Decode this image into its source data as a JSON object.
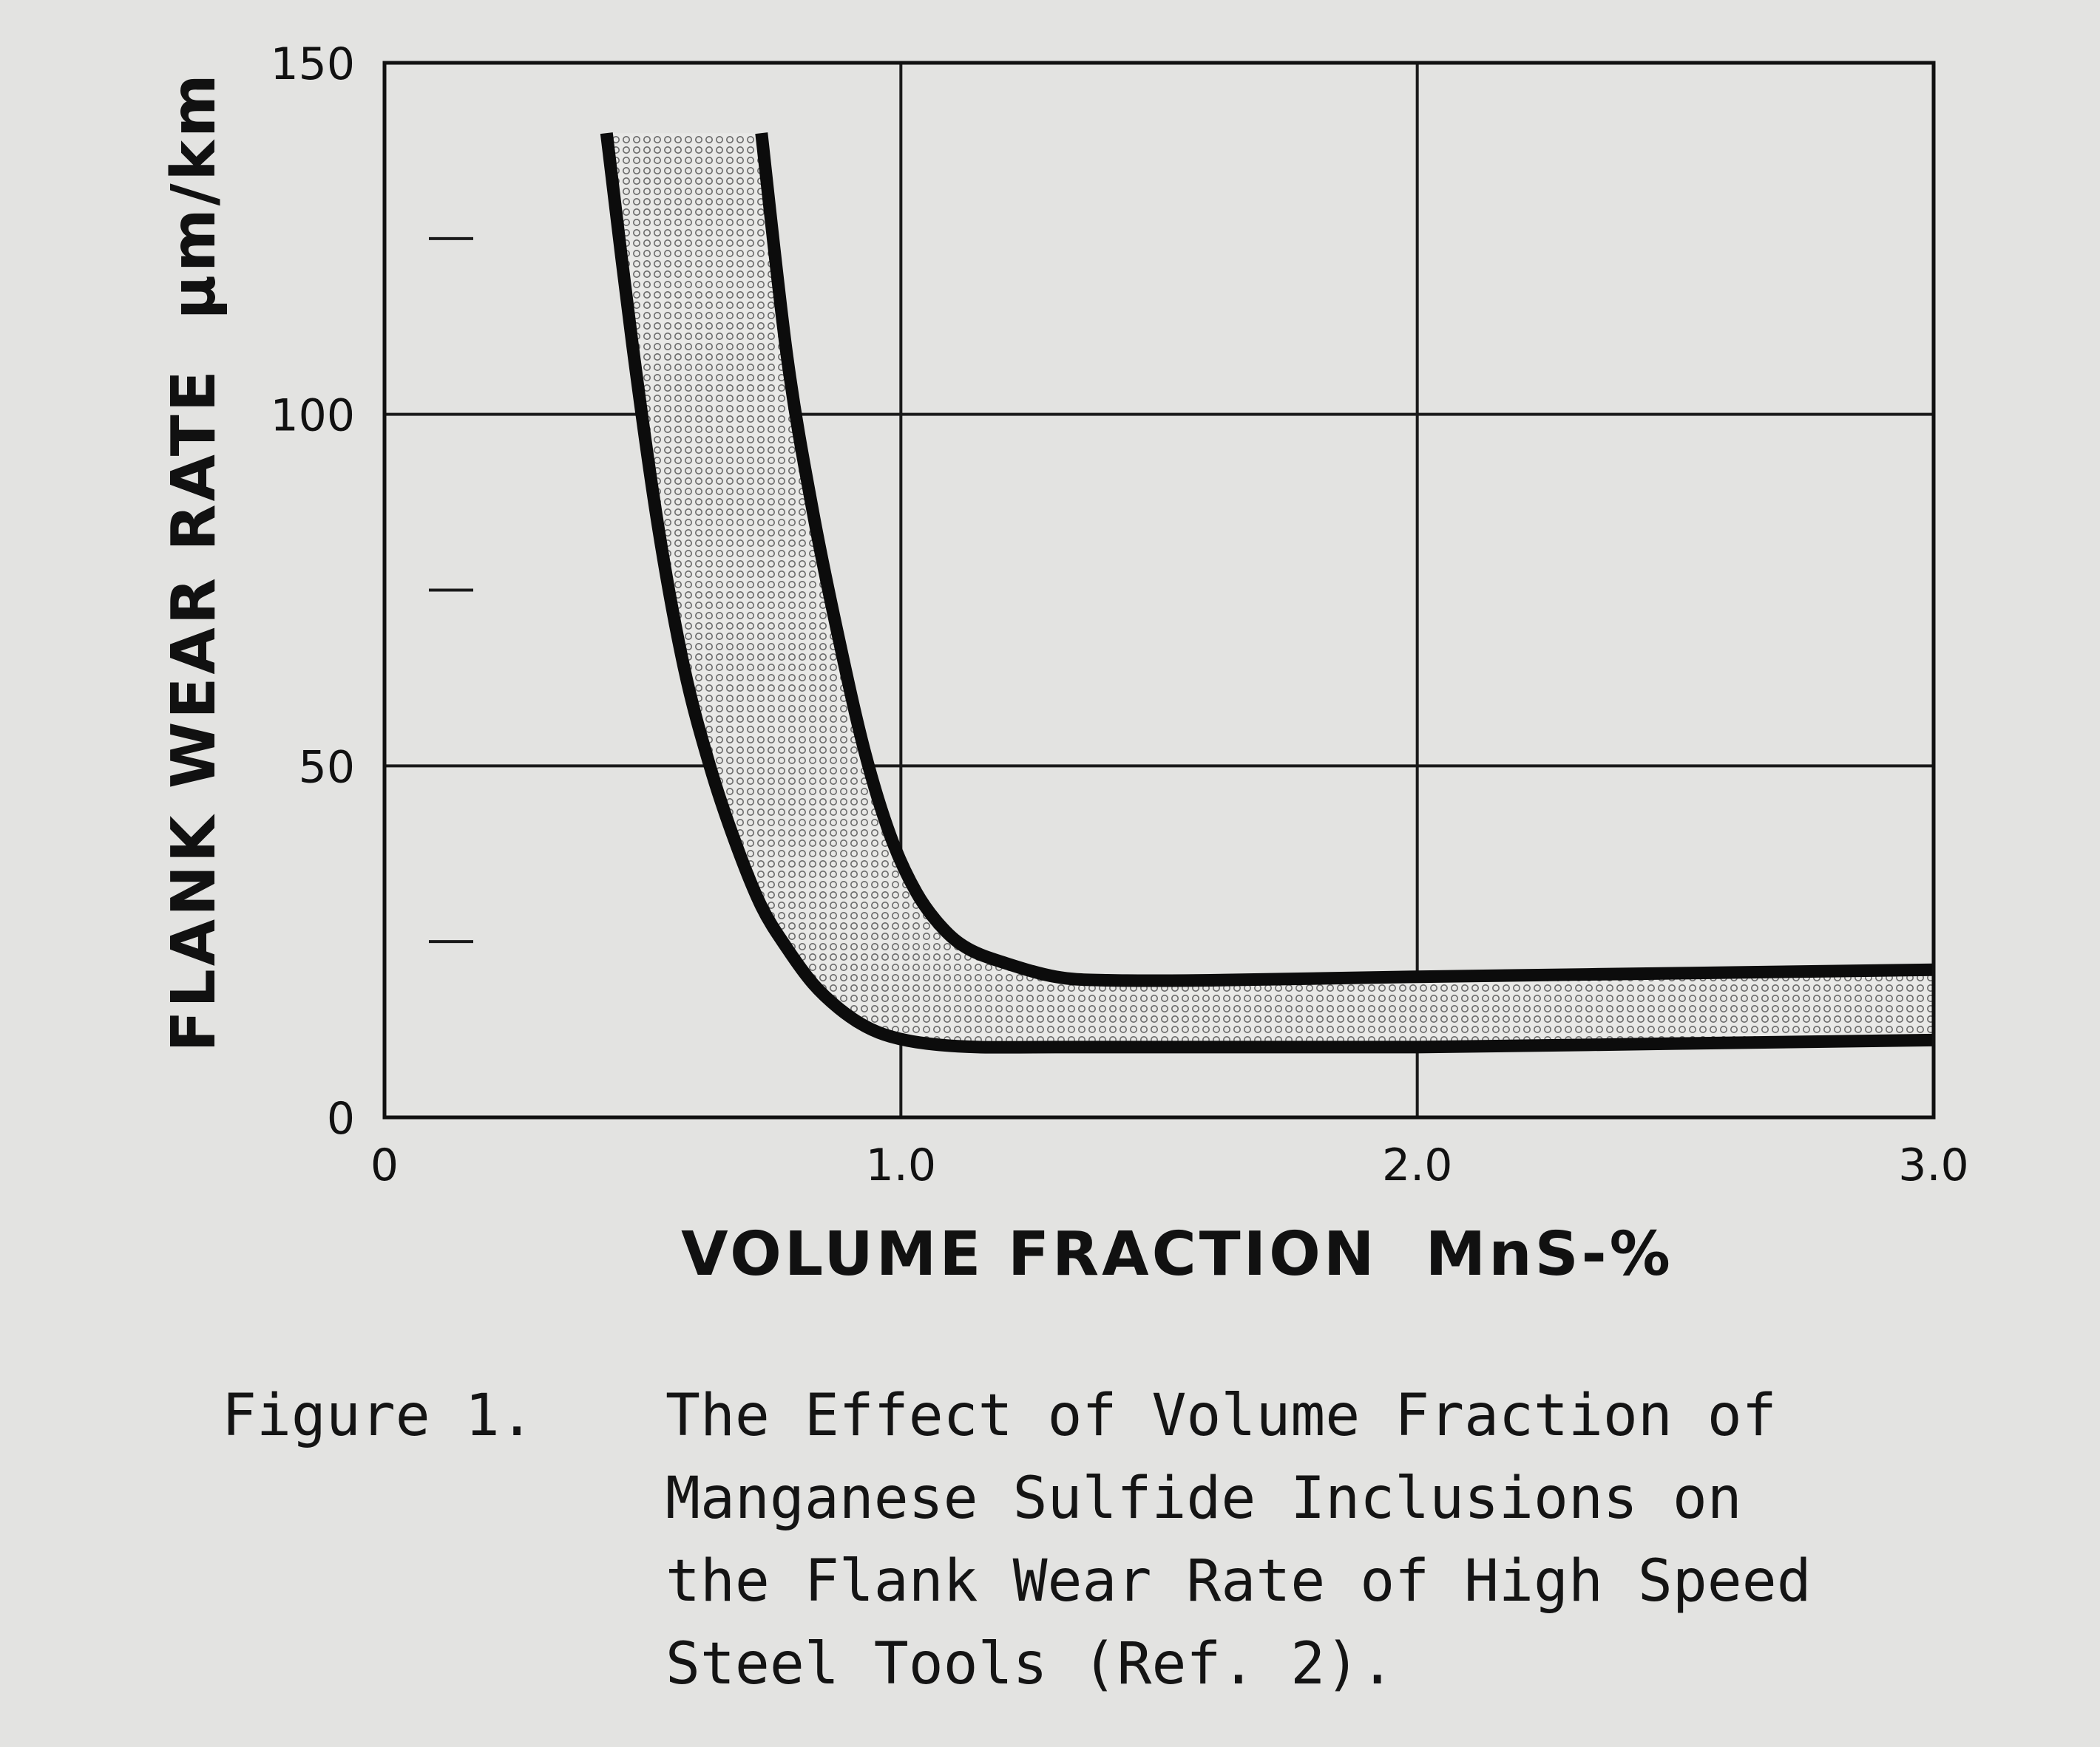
{
  "chart_data": {
    "type": "area",
    "xlabel": "VOLUME FRACTION  MnS-%",
    "ylabel": "FLANK WEAR RATE  μm/km",
    "xlim": [
      0,
      3.0
    ],
    "ylim": [
      0,
      150
    ],
    "x_ticks": [
      "0",
      "1.0",
      "2.0",
      "3.0"
    ],
    "y_ticks": [
      "0",
      "50",
      "100",
      "150"
    ],
    "y_minor_ticks": [
      25,
      75,
      125
    ],
    "grid": true,
    "series": [
      {
        "band": "upper",
        "x": [
          0.73,
          0.78,
          0.83,
          0.88,
          0.93,
          0.98,
          1.03,
          1.08,
          1.13,
          1.2,
          1.3,
          1.4,
          1.6,
          2.0,
          2.5,
          3.0
        ],
        "y": [
          140,
          108,
          86,
          68,
          52,
          40,
          32,
          27,
          24,
          22,
          20,
          19.5,
          19.5,
          20,
          20.5,
          21
        ]
      },
      {
        "band": "lower",
        "x": [
          0.43,
          0.48,
          0.53,
          0.58,
          0.63,
          0.68,
          0.73,
          0.78,
          0.83,
          0.88,
          0.93,
          0.98,
          1.05,
          1.15,
          1.3,
          1.6,
          2.0,
          2.5,
          3.0
        ],
        "y": [
          140,
          110,
          84,
          64,
          50,
          39,
          30,
          24,
          19,
          15.5,
          13,
          11.5,
          10.5,
          10,
          10,
          10,
          10,
          10.5,
          11
        ]
      }
    ],
    "fill": "stippled band between curves"
  },
  "caption": {
    "label": "Figure 1.",
    "lines": [
      "The Effect of Volume Fraction of",
      "Manganese Sulfide Inclusions on",
      "the Flank Wear Rate of High Speed",
      "Steel Tools (Ref. 2)."
    ]
  }
}
